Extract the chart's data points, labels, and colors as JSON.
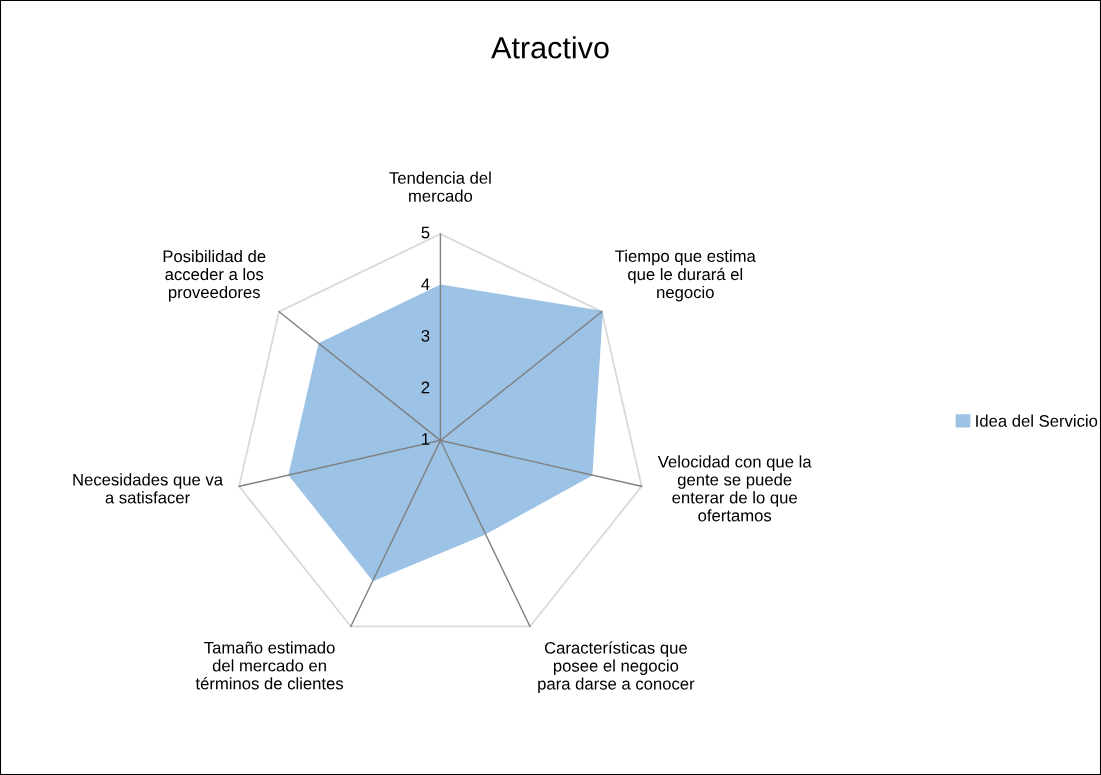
{
  "chart_data": {
    "type": "radar",
    "title": "Atractivo",
    "categories": [
      "Tendencia del\nmercado",
      "Tiempo que estima\nque le durará el\nnegocio",
      "Velocidad con que la\ngente se puede\nenterar de lo que\nofertamos",
      "Características que\nposee el negocio\npara darse a conocer",
      "Tamaño estimado\ndel mercado en\ntérminos de clientes",
      "Necesidades que va\na satisfacer",
      "Posibilidad de\nacceder a los\nproveedores"
    ],
    "series": [
      {
        "name": "Idea del Servicio",
        "color": "#5b9bd5",
        "values": [
          4,
          5,
          4,
          3,
          4,
          4,
          4
        ]
      }
    ],
    "ylim": [
      1,
      5
    ],
    "yticks": [
      1,
      2,
      3,
      4,
      5
    ],
    "grid": false,
    "legend": "right"
  }
}
